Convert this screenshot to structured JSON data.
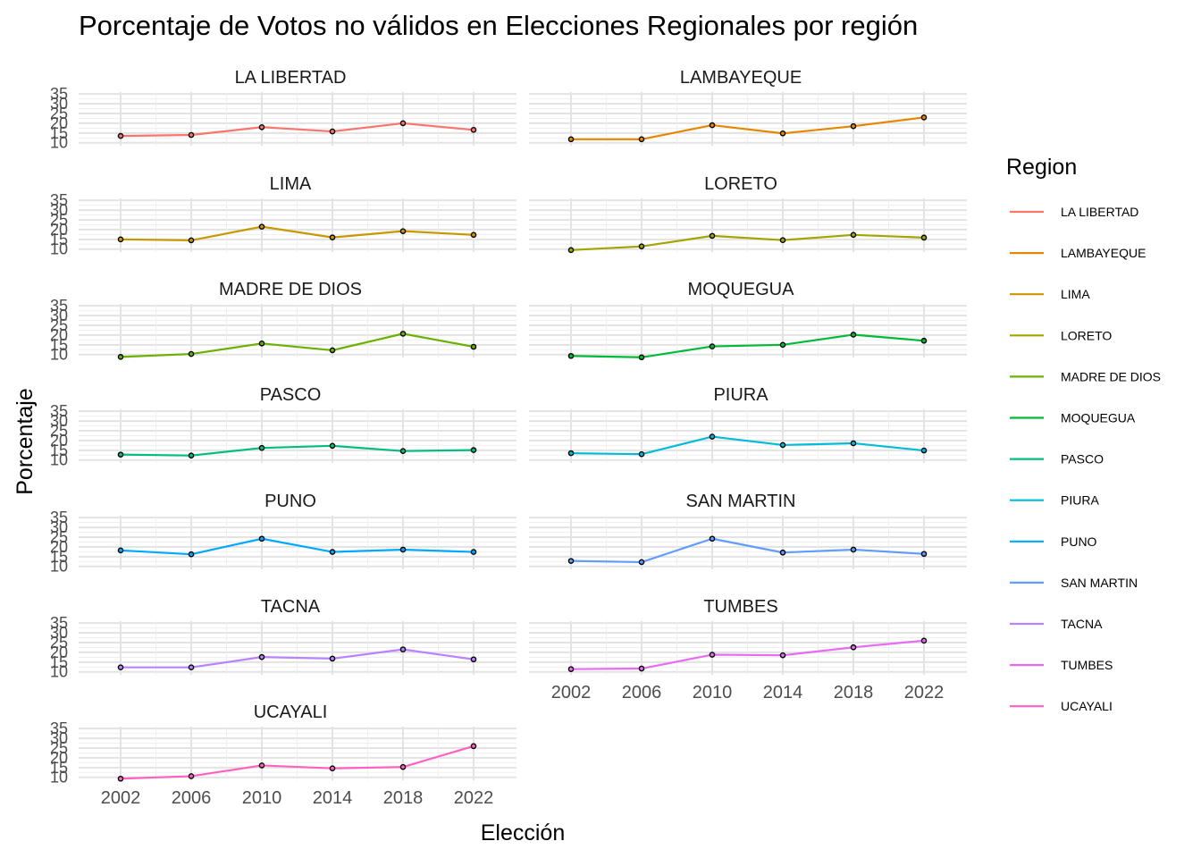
{
  "chart_data": {
    "type": "line",
    "title": "Porcentaje de Votos no válidos en Elecciones Regionales por región",
    "xlabel": "Elección",
    "ylabel": "Porcentaje",
    "legend_title": "Region",
    "legend_position": "right",
    "grid": true,
    "facet_layout": "7 rows x 2 columns",
    "x": [
      2002,
      2006,
      2010,
      2014,
      2018,
      2022
    ],
    "x_ticks": [
      "2002",
      "2006",
      "2010",
      "2014",
      "2018",
      "2022"
    ],
    "y_ticks": [
      "10",
      "15",
      "20",
      "25",
      "30",
      "35"
    ],
    "ylim": [
      8.5,
      36
    ],
    "series": [
      {
        "name": "LA LIBERTAD",
        "color": "#F8766D",
        "values": [
          13.5,
          14,
          18,
          15.8,
          20,
          16.6
        ]
      },
      {
        "name": "LAMBAYEQUE",
        "color": "#E58700",
        "values": [
          11.8,
          11.8,
          19,
          14.8,
          18.5,
          23
        ]
      },
      {
        "name": "LIMA",
        "color": "#C99800",
        "values": [
          15,
          14.5,
          21.5,
          16,
          19.2,
          17.3
        ]
      },
      {
        "name": "LORETO",
        "color": "#A3A500",
        "values": [
          9.5,
          11.4,
          16.8,
          14.6,
          17.3,
          15.9
        ]
      },
      {
        "name": "MADRE DE DIOS",
        "color": "#6BB100",
        "values": [
          8.8,
          10.3,
          15.7,
          12.2,
          20.7,
          14
        ]
      },
      {
        "name": "MOQUEGUA",
        "color": "#00BA38",
        "values": [
          9.3,
          8.6,
          14.2,
          15,
          20.2,
          17.1
        ]
      },
      {
        "name": "PASCO",
        "color": "#00BF7D",
        "values": [
          12.8,
          12.3,
          16.2,
          17.3,
          14.6,
          15.1
        ]
      },
      {
        "name": "PIURA",
        "color": "#00BCD8",
        "values": [
          13.5,
          13,
          22,
          17.7,
          18.6,
          14.9
        ]
      },
      {
        "name": "PUNO",
        "color": "#00A9FF",
        "values": [
          18.2,
          16.2,
          24.2,
          17.4,
          18.6,
          17.4
        ]
      },
      {
        "name": "SAN MARTIN",
        "color": "#619CFF",
        "values": [
          12.8,
          12.2,
          24.2,
          17.1,
          18.6,
          16.4
        ]
      },
      {
        "name": "TACNA",
        "color": "#B983FF",
        "values": [
          12.3,
          12.3,
          17.6,
          16.8,
          21.5,
          16.4
        ]
      },
      {
        "name": "TUMBES",
        "color": "#E76BF3",
        "values": [
          11.4,
          11.7,
          18.8,
          18.5,
          22.6,
          26
        ]
      },
      {
        "name": "UCAYALI",
        "color": "#FF61C3",
        "values": [
          9.3,
          10.6,
          16.1,
          14.6,
          15.3,
          26
        ]
      }
    ]
  }
}
